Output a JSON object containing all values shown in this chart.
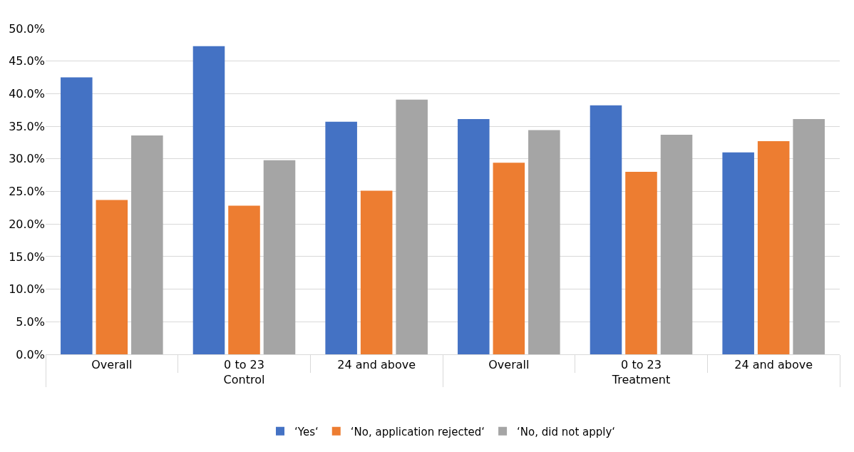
{
  "chart_data": {
    "type": "bar",
    "categories": [
      "Overall",
      "0 to 23",
      "24 and above",
      "Overall",
      "0 to 23",
      "24 and above"
    ],
    "annotations": [
      "Control",
      "Treatment"
    ],
    "series": [
      {
        "name": "‘Yes‘",
        "color": "#4472c4",
        "values": [
          42.5,
          47.3,
          35.7,
          36.1,
          38.2,
          31.0
        ]
      },
      {
        "name": "‘No, application rejected‘",
        "color": "#ed7d31",
        "values": [
          23.7,
          22.8,
          25.1,
          29.4,
          28.0,
          32.7
        ]
      },
      {
        "name": "‘No, did not apply‘",
        "color": "#a5a5a5",
        "values": [
          33.6,
          29.8,
          39.1,
          34.4,
          33.7,
          36.1
        ]
      }
    ],
    "ylim": [
      0,
      50
    ],
    "yticks": [
      {
        "value": 0,
        "label": "0.0%"
      },
      {
        "value": 5,
        "label": "5.0%"
      },
      {
        "value": 10,
        "label": "10.0%"
      },
      {
        "value": 15,
        "label": "15.0%"
      },
      {
        "value": 20,
        "label": "20.0%"
      },
      {
        "value": 25,
        "label": "25.0%"
      },
      {
        "value": 30,
        "label": "30.0%"
      },
      {
        "value": 35,
        "label": "35.0%"
      },
      {
        "value": 40,
        "label": "40.0%"
      },
      {
        "value": 45,
        "label": "45.0%"
      },
      {
        "value": 50,
        "label": "50.0%"
      }
    ],
    "grid": "y",
    "legend": "bottom"
  }
}
